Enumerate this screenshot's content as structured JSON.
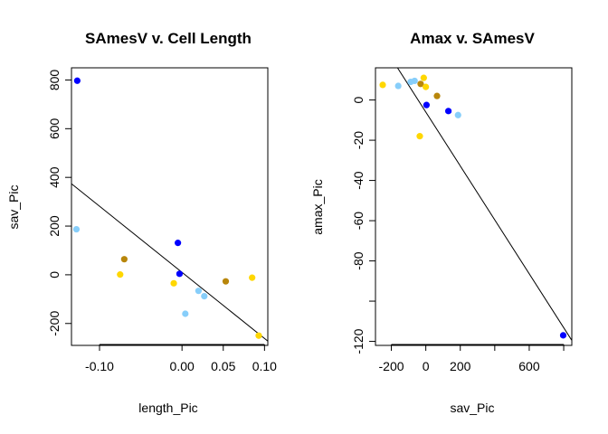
{
  "chart_data": [
    {
      "type": "scatter",
      "title": "SAmesV v. Cell Length",
      "xlabel": "length_Pic",
      "ylabel": "sav_Pic",
      "xlim": [
        -0.134,
        0.104
      ],
      "ylim": [
        -290,
        850
      ],
      "xticks": [
        {
          "value": -0.1,
          "label": "-0.10"
        },
        {
          "value": 0.0,
          "label": "0.00"
        },
        {
          "value": 0.05,
          "label": "0.05"
        },
        {
          "value": 0.1,
          "label": "0.10"
        }
      ],
      "yticks": [
        {
          "value": -200,
          "label": "-200"
        },
        {
          "value": 0,
          "label": "0"
        },
        {
          "value": 200,
          "label": "200"
        },
        {
          "value": 400,
          "label": "400"
        },
        {
          "value": 600,
          "label": "600"
        },
        {
          "value": 800,
          "label": "800"
        }
      ],
      "grid": false,
      "points": [
        {
          "x": -0.127,
          "y": 797,
          "color": "#0000FF"
        },
        {
          "x": -0.128,
          "y": 187,
          "color": "#87CEFA"
        },
        {
          "x": -0.07,
          "y": 64,
          "color": "#B8860B"
        },
        {
          "x": -0.075,
          "y": 1,
          "color": "#FFD700"
        },
        {
          "x": -0.005,
          "y": 131,
          "color": "#0000FF"
        },
        {
          "x": -0.003,
          "y": 4,
          "color": "#0000FF"
        },
        {
          "x": -0.01,
          "y": -35,
          "color": "#FFD700"
        },
        {
          "x": 0.004,
          "y": -160,
          "color": "#87CEFA"
        },
        {
          "x": 0.02,
          "y": -66,
          "color": "#87CEFA"
        },
        {
          "x": 0.027,
          "y": -88,
          "color": "#87CEFA"
        },
        {
          "x": 0.053,
          "y": -27,
          "color": "#B8860B"
        },
        {
          "x": 0.085,
          "y": -12,
          "color": "#FFD700"
        },
        {
          "x": 0.093,
          "y": -250,
          "color": "#FFD700"
        }
      ],
      "fit_line": {
        "intercept": 10,
        "slope": -2715
      }
    },
    {
      "type": "scatter",
      "title": "Amax v. SAmesV",
      "xlabel": "sav_Pic",
      "ylabel": "amax_Pic",
      "xlim": [
        -292,
        847
      ],
      "ylim": [
        -122,
        16
      ],
      "xticks": [
        {
          "value": -200,
          "label": "-200"
        },
        {
          "value": 0,
          "label": "0"
        },
        {
          "value": 200,
          "label": "200"
        },
        {
          "value": 600,
          "label": "600"
        }
      ],
      "xtick_marks": [
        -200,
        0,
        200,
        400,
        600,
        800
      ],
      "yticks": [
        {
          "value": -120,
          "label": "-120"
        },
        {
          "value": -80,
          "label": "-80"
        },
        {
          "value": -60,
          "label": "-60"
        },
        {
          "value": -40,
          "label": "-40"
        },
        {
          "value": -20,
          "label": "-20"
        },
        {
          "value": 0,
          "label": "0"
        }
      ],
      "ytick_marks": [
        -120,
        -100,
        -80,
        -60,
        -40,
        -20,
        0
      ],
      "grid": false,
      "points": [
        {
          "x": -250,
          "y": 7.5,
          "color": "#FFD700"
        },
        {
          "x": -160,
          "y": 7,
          "color": "#87CEFA"
        },
        {
          "x": -88,
          "y": 9,
          "color": "#87CEFA"
        },
        {
          "x": -65,
          "y": 9.5,
          "color": "#87CEFA"
        },
        {
          "x": -30,
          "y": 8,
          "color": "#B8860B"
        },
        {
          "x": -12,
          "y": 11,
          "color": "#FFD700"
        },
        {
          "x": 0,
          "y": 6.5,
          "color": "#FFD700"
        },
        {
          "x": 65,
          "y": 2,
          "color": "#B8860B"
        },
        {
          "x": 4,
          "y": -2.5,
          "color": "#0000FF"
        },
        {
          "x": 131,
          "y": -5.5,
          "color": "#0000FF"
        },
        {
          "x": 187,
          "y": -7.5,
          "color": "#87CEFA"
        },
        {
          "x": -35,
          "y": -18,
          "color": "#FFD700"
        },
        {
          "x": 797,
          "y": -117,
          "color": "#0000FF"
        }
      ],
      "fit_line": {
        "intercept": -6,
        "slope": -0.134
      }
    }
  ]
}
